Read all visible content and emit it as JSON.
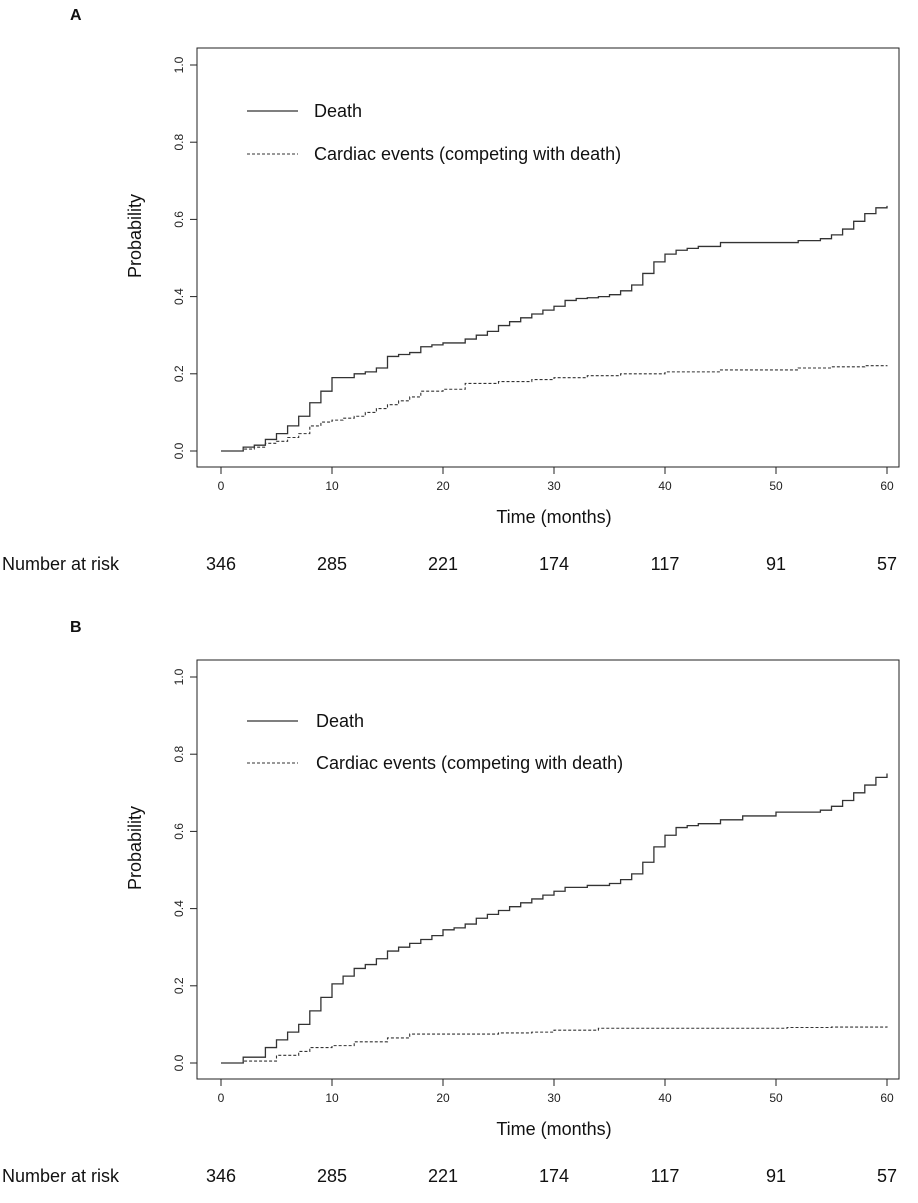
{
  "chart_data": [
    {
      "type": "line",
      "panel_label": "A",
      "xlabel": "Time (months)",
      "ylabel": "Probability",
      "xlim": [
        0,
        60
      ],
      "ylim": [
        0,
        1
      ],
      "x_ticks": [
        "0",
        "10",
        "20",
        "30",
        "40",
        "50",
        "60"
      ],
      "y_ticks": [
        "0.0",
        "0.2",
        "0.4",
        "0.6",
        "0.8",
        "1.0"
      ],
      "legend_position": "top-left",
      "series": [
        {
          "name": "Death",
          "style": "solid",
          "x": [
            0,
            2,
            3,
            4,
            5,
            6,
            7,
            8,
            9,
            10,
            12,
            13,
            14,
            15,
            16,
            17,
            18,
            19,
            20,
            22,
            23,
            24,
            25,
            26,
            27,
            28,
            29,
            30,
            31,
            32,
            33,
            34,
            35,
            36,
            37,
            38,
            39,
            40,
            41,
            42,
            43,
            45,
            50,
            52,
            54,
            55,
            56,
            57,
            58,
            59,
            60
          ],
          "y": [
            0,
            0.01,
            0.015,
            0.03,
            0.045,
            0.065,
            0.09,
            0.125,
            0.155,
            0.19,
            0.2,
            0.205,
            0.215,
            0.245,
            0.25,
            0.255,
            0.27,
            0.275,
            0.28,
            0.29,
            0.3,
            0.31,
            0.325,
            0.335,
            0.345,
            0.355,
            0.365,
            0.375,
            0.39,
            0.395,
            0.397,
            0.4,
            0.405,
            0.415,
            0.43,
            0.46,
            0.49,
            0.51,
            0.52,
            0.525,
            0.53,
            0.54,
            0.54,
            0.545,
            0.55,
            0.56,
            0.575,
            0.595,
            0.615,
            0.63,
            0.635
          ]
        },
        {
          "name": "Cardiac events (competing with death)",
          "style": "dashed",
          "x": [
            0,
            2,
            3,
            4,
            5,
            6,
            7,
            8,
            9,
            10,
            11,
            12,
            13,
            14,
            15,
            16,
            17,
            18,
            20,
            22,
            25,
            28,
            30,
            33,
            36,
            40,
            45,
            52,
            55,
            58,
            60
          ],
          "y": [
            0,
            0.005,
            0.01,
            0.02,
            0.025,
            0.035,
            0.045,
            0.065,
            0.075,
            0.08,
            0.085,
            0.09,
            0.1,
            0.11,
            0.12,
            0.13,
            0.14,
            0.155,
            0.16,
            0.175,
            0.18,
            0.185,
            0.19,
            0.195,
            0.2,
            0.205,
            0.21,
            0.215,
            0.218,
            0.221,
            0.222
          ]
        }
      ]
    },
    {
      "type": "line",
      "panel_label": "B",
      "xlabel": "Time (months)",
      "ylabel": "Probability",
      "xlim": [
        0,
        60
      ],
      "ylim": [
        0,
        1
      ],
      "x_ticks": [
        "0",
        "10",
        "20",
        "30",
        "40",
        "50",
        "60"
      ],
      "y_ticks": [
        "0.0",
        "0.2",
        "0.4",
        "0.6",
        "0.8",
        "1.0"
      ],
      "legend_position": "top-left",
      "series": [
        {
          "name": "Death",
          "style": "solid",
          "x": [
            0,
            2,
            4,
            5,
            6,
            7,
            8,
            9,
            10,
            11,
            12,
            13,
            14,
            15,
            16,
            17,
            18,
            19,
            20,
            21,
            22,
            23,
            24,
            25,
            26,
            27,
            28,
            29,
            30,
            31,
            33,
            35,
            36,
            37,
            38,
            39,
            40,
            41,
            42,
            43,
            45,
            47,
            50,
            54,
            55,
            56,
            57,
            58,
            59,
            60
          ],
          "y": [
            0,
            0.015,
            0.04,
            0.06,
            0.08,
            0.1,
            0.135,
            0.17,
            0.205,
            0.225,
            0.245,
            0.255,
            0.27,
            0.29,
            0.3,
            0.31,
            0.32,
            0.33,
            0.345,
            0.35,
            0.36,
            0.375,
            0.385,
            0.395,
            0.405,
            0.415,
            0.425,
            0.435,
            0.445,
            0.455,
            0.46,
            0.465,
            0.475,
            0.49,
            0.52,
            0.56,
            0.59,
            0.61,
            0.615,
            0.62,
            0.63,
            0.64,
            0.65,
            0.655,
            0.665,
            0.68,
            0.7,
            0.72,
            0.74,
            0.75
          ]
        },
        {
          "name": "Cardiac events (competing with death)",
          "style": "dashed",
          "x": [
            0,
            2,
            5,
            7,
            8,
            10,
            12,
            15,
            17,
            20,
            25,
            28,
            30,
            34,
            40,
            50,
            51,
            55,
            60
          ],
          "y": [
            0,
            0.005,
            0.02,
            0.03,
            0.04,
            0.045,
            0.055,
            0.065,
            0.075,
            0.075,
            0.078,
            0.08,
            0.085,
            0.09,
            0.09,
            0.09,
            0.092,
            0.093,
            0.095
          ]
        }
      ]
    }
  ],
  "risk_table": {
    "label": "Number at risk",
    "times": [
      0,
      10,
      20,
      30,
      40,
      50,
      60
    ],
    "counts_a": [
      "346",
      "285",
      "221",
      "174",
      "117",
      "91",
      "57"
    ],
    "counts_b": [
      "346",
      "285",
      "221",
      "174",
      "117",
      "91",
      "57"
    ]
  }
}
